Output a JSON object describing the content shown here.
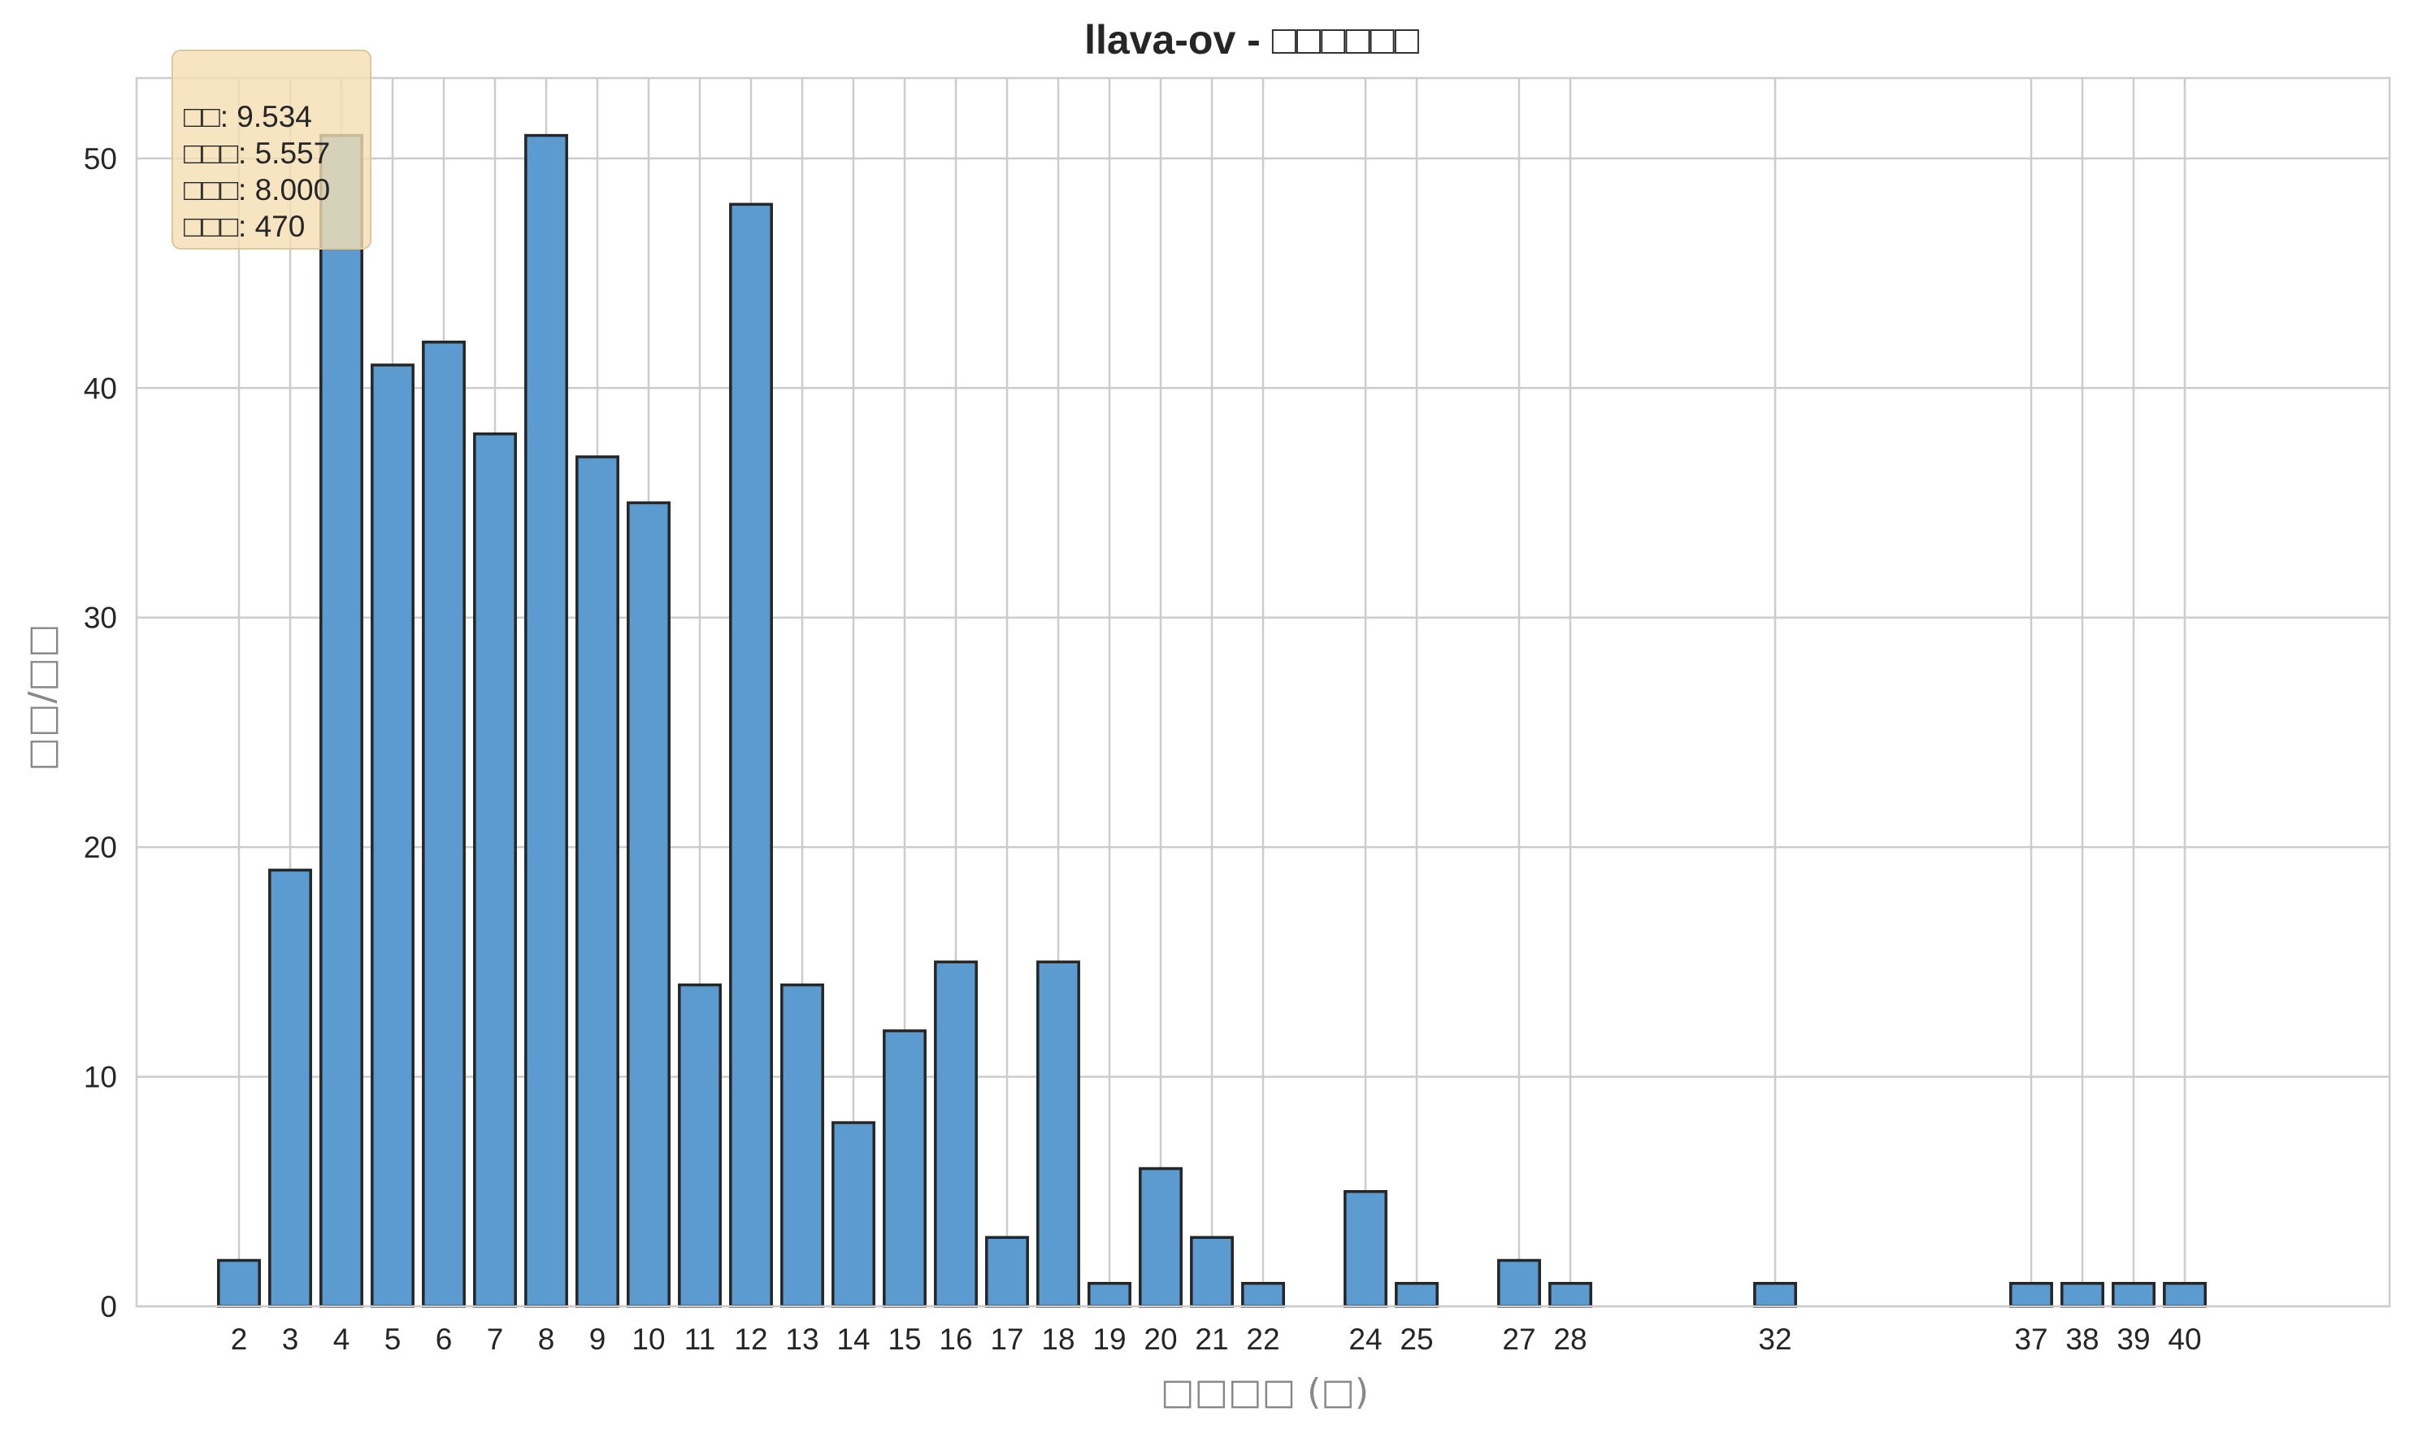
{
  "colors": {
    "bar_fill": "#5b9bd0",
    "bar_edge": "#262626",
    "grid": "#cccccc",
    "frame": "#cccccc",
    "stats_box": "#f5deb3"
  },
  "chart_data": {
    "type": "bar",
    "title": "llava-ov - □□□□□□",
    "xlabel": "□□□□ (□)",
    "ylabel": "□□/□□",
    "xlim": [
      0,
      44
    ],
    "ylim": [
      0,
      53.5
    ],
    "yticks": [
      0,
      10,
      20,
      30,
      40,
      50
    ],
    "grid": true,
    "categories": [
      "2",
      "3",
      "4",
      "5",
      "6",
      "7",
      "8",
      "9",
      "10",
      "11",
      "12",
      "13",
      "14",
      "15",
      "16",
      "17",
      "18",
      "19",
      "20",
      "21",
      "22",
      "24",
      "25",
      "27",
      "28",
      "32",
      "37",
      "38",
      "39",
      "40"
    ],
    "x": [
      2,
      3,
      4,
      5,
      6,
      7,
      8,
      9,
      10,
      11,
      12,
      13,
      14,
      15,
      16,
      17,
      18,
      19,
      20,
      21,
      22,
      24,
      25,
      27,
      28,
      32,
      37,
      38,
      39,
      40
    ],
    "values": [
      2,
      19,
      51,
      41,
      42,
      38,
      51,
      37,
      35,
      14,
      48,
      14,
      8,
      12,
      15,
      3,
      15,
      1,
      6,
      3,
      1,
      5,
      1,
      2,
      1,
      1,
      1,
      1,
      1,
      1
    ],
    "stats": [
      {
        "label": "□□",
        "value": "9.534"
      },
      {
        "label": "□□□",
        "value": "5.557"
      },
      {
        "label": "□□□",
        "value": "8.000"
      },
      {
        "label": "□□□",
        "value": "470"
      }
    ]
  }
}
